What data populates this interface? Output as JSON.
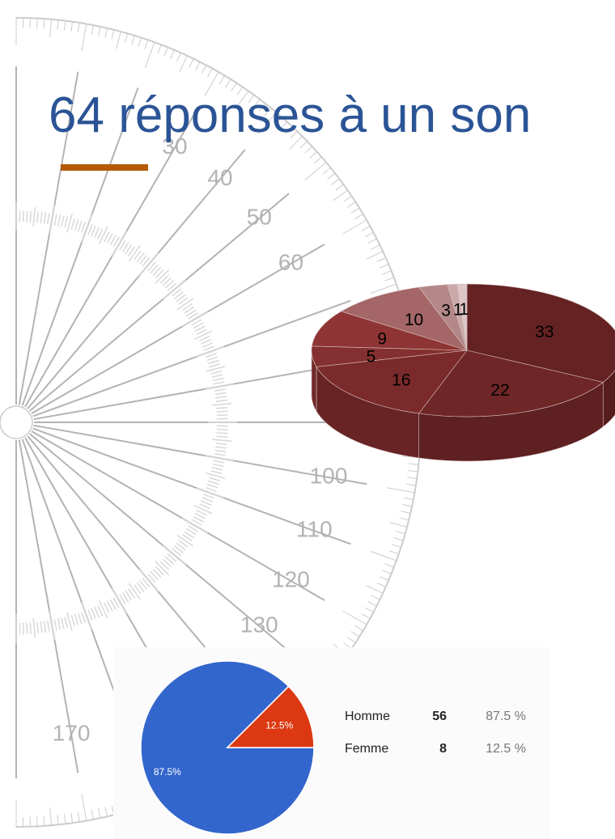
{
  "title": "64 réponses à un son",
  "background": {
    "protractor_labels": [
      30,
      40,
      50,
      60,
      100,
      110,
      120,
      130,
      170
    ]
  },
  "chart_data": [
    {
      "type": "pie3d",
      "values": [
        33,
        22,
        16,
        5,
        9,
        10,
        3,
        1,
        1
      ],
      "colors": [
        "#652222",
        "#6f2627",
        "#7a2a2b",
        "#853030",
        "#8f3434",
        "#a46666",
        "#b48888",
        "#c9a9a9",
        "#ddc6c6"
      ]
    },
    {
      "type": "pie",
      "categories": [
        "Homme",
        "Femme"
      ],
      "values": [
        56,
        8
      ],
      "value_labels": [
        "87.5%",
        "12.5%"
      ],
      "percents": [
        87.5,
        12.5
      ],
      "percent_labels": [
        "87.5 %",
        "12.5 %"
      ],
      "colors": [
        "#3366cc",
        "#dc3912"
      ]
    }
  ]
}
